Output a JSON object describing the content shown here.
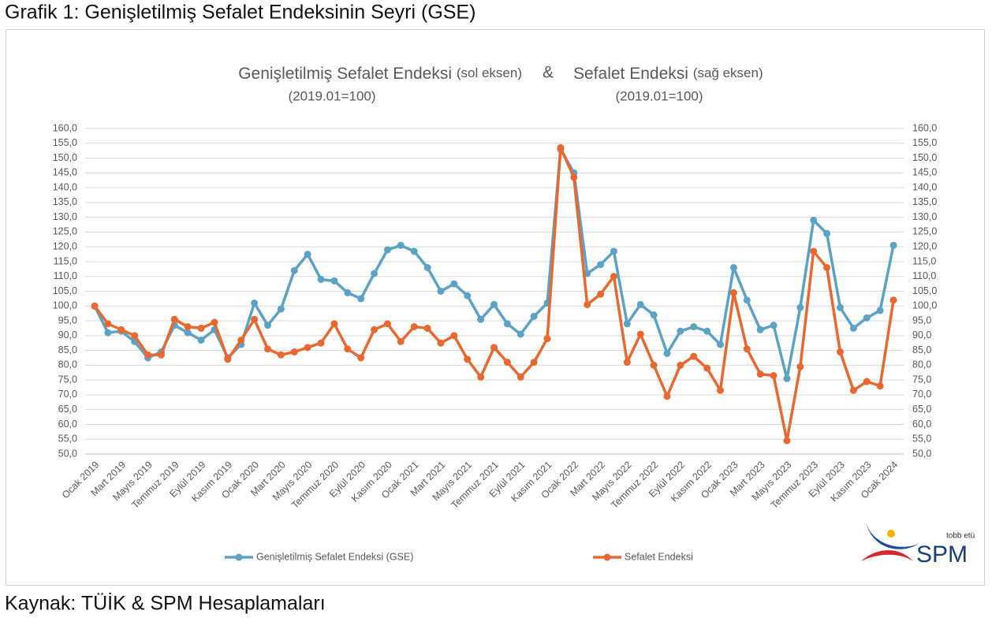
{
  "header": "Grafik 1: Genişletilmiş Sefalet Endeksinin Seyri (GSE)",
  "source": "Kaynak: TÜİK & SPM Hesaplamaları",
  "logo": {
    "small": "tobb etü",
    "big": "SPM"
  },
  "chart_data": {
    "type": "line",
    "title_left": "Genişletilmiş Sefalet Endeksi",
    "title_left_note": "(sol eksen)",
    "title_joiner": "&",
    "title_right": "Sefalet Endeksi",
    "title_right_note": "(sağ eksen)",
    "subtitle_left": "(2019.01=100)",
    "subtitle_right": "(2019.01=100)",
    "categories": [
      "Ocak 2019",
      null,
      "Mart 2019",
      null,
      "Mayıs 2019",
      null,
      "Temmuz 2019",
      null,
      "Eylül 2019",
      null,
      "Kasım 2019",
      null,
      "Ocak 2020",
      null,
      "Mart 2020",
      null,
      "Mayıs 2020",
      null,
      "Temmuz 2020",
      null,
      "Eylül 2020",
      null,
      "Kasım 2020",
      null,
      "Ocak 2021",
      null,
      "Mart 2021",
      null,
      "Mayıs 2021",
      null,
      "Temmuz 2021",
      null,
      "Eylül 2021",
      null,
      "Kasım 2021",
      null,
      "Ocak 2022",
      null,
      "Mart 2022",
      null,
      "Mayıs 2022",
      null,
      "Temmuz 2022",
      null,
      "Eylül 2022",
      null,
      "Kasım 2022",
      null,
      "Ocak 2023",
      null,
      "Mart 2023",
      null,
      "Mayıs 2023",
      null,
      "Temmuz 2023",
      null,
      "Eylül 2023",
      null,
      "Kasım 2023",
      null,
      "Ocak 2024"
    ],
    "series": [
      {
        "name": "Genişletilmiş Sefalet Endeksi (GSE)",
        "color": "#5ba3c6",
        "axis": "y",
        "values": [
          100,
          91,
          91.5,
          88,
          82.5,
          84.5,
          93.5,
          91,
          88.5,
          92,
          82.5,
          87,
          101,
          93.5,
          99,
          112,
          117.5,
          109,
          108.5,
          104.5,
          102.5,
          111,
          119,
          120.5,
          118.5,
          113,
          105,
          107.5,
          103.5,
          95.5,
          100.5,
          94,
          90.5,
          96.5,
          101,
          153,
          145,
          111,
          114,
          118.5,
          94,
          100.5,
          97,
          84,
          91.5,
          93,
          91.5,
          87,
          113,
          102,
          92,
          93.5,
          75.5,
          99.5,
          129,
          124.5,
          99.5,
          92.5,
          96,
          98.5,
          120.5
        ]
      },
      {
        "name": "Sefalet Endeksi",
        "color": "#e8682f",
        "axis": "y2",
        "values": [
          100,
          94,
          92,
          90,
          83.5,
          83.5,
          95.5,
          93,
          92.5,
          94.5,
          82,
          88.5,
          95.5,
          85.5,
          83.5,
          84.5,
          86,
          87.5,
          94,
          85.5,
          82.5,
          92,
          94,
          88,
          93,
          92.5,
          87.5,
          90,
          82,
          76,
          86,
          81,
          76,
          81,
          89,
          153.5,
          143.5,
          100.5,
          104,
          110,
          81,
          90.5,
          80,
          69.5,
          80,
          83,
          79,
          71.5,
          104.5,
          85.5,
          77,
          76.5,
          54.5,
          79.5,
          118.5,
          113,
          84.5,
          71.5,
          74.5,
          73,
          102
        ]
      }
    ],
    "ylim": [
      50,
      160
    ],
    "yticks": [
      {
        "value": 50,
        "label": "50,0"
      },
      {
        "value": 55,
        "label": "55,0"
      },
      {
        "value": 60,
        "label": "60,0"
      },
      {
        "value": 65,
        "label": "65,0"
      },
      {
        "value": 70,
        "label": "70,0"
      },
      {
        "value": 75,
        "label": "75,0"
      },
      {
        "value": 80,
        "label": "80,0"
      },
      {
        "value": 85,
        "label": "85,0"
      },
      {
        "value": 90,
        "label": "90,0"
      },
      {
        "value": 95,
        "label": "95,0"
      },
      {
        "value": 100,
        "label": "100,0"
      },
      {
        "value": 105,
        "label": "105,0"
      },
      {
        "value": 110,
        "label": "110,0"
      },
      {
        "value": 115,
        "label": "115,0"
      },
      {
        "value": 120,
        "label": "120,0"
      },
      {
        "value": 125,
        "label": "125,0"
      },
      {
        "value": 130,
        "label": "130,0"
      },
      {
        "value": 135,
        "label": "135,0"
      },
      {
        "value": 140,
        "label": "140,0"
      },
      {
        "value": 145,
        "label": "145,0"
      },
      {
        "value": 150,
        "label": "150,0"
      },
      {
        "value": 155,
        "label": "155,0"
      },
      {
        "value": 160,
        "label": "160,0"
      }
    ],
    "y2lim": [
      50,
      160
    ],
    "y2ticks": [
      {
        "value": 50,
        "label": "50,0"
      },
      {
        "value": 55,
        "label": "55,0"
      },
      {
        "value": 60,
        "label": "60,0"
      },
      {
        "value": 65,
        "label": "65,0"
      },
      {
        "value": 70,
        "label": "70,0"
      },
      {
        "value": 75,
        "label": "75,0"
      },
      {
        "value": 80,
        "label": "80,0"
      },
      {
        "value": 85,
        "label": "85,0"
      },
      {
        "value": 90,
        "label": "90,0"
      },
      {
        "value": 95,
        "label": "95,0"
      },
      {
        "value": 100,
        "label": "100,0"
      },
      {
        "value": 105,
        "label": "105,0"
      },
      {
        "value": 110,
        "label": "110,0"
      },
      {
        "value": 115,
        "label": "115,0"
      },
      {
        "value": 120,
        "label": "120,0"
      },
      {
        "value": 125,
        "label": "125,0"
      },
      {
        "value": 130,
        "label": "130,0"
      },
      {
        "value": 135,
        "label": "135,0"
      },
      {
        "value": 140,
        "label": "140,0"
      },
      {
        "value": 145,
        "label": "145,0"
      },
      {
        "value": 150,
        "label": "150,0"
      },
      {
        "value": 155,
        "label": "155,0"
      },
      {
        "value": 160,
        "label": "160,0"
      }
    ],
    "grid": true,
    "legend": "bottom"
  }
}
